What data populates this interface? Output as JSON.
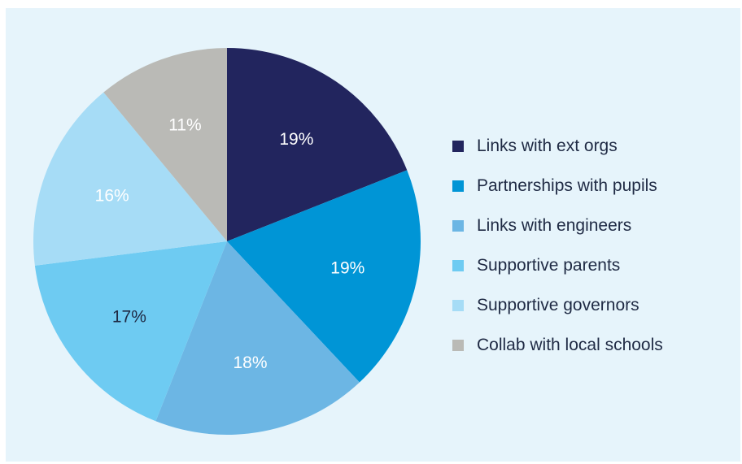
{
  "chart_data": {
    "type": "pie",
    "title": "",
    "legend_position": "right",
    "slices": [
      {
        "label": "Links with ext orgs",
        "value": 19,
        "display": "19%",
        "color": "#22255e",
        "text_color": "#ffffff"
      },
      {
        "label": "Partnerships with pupils",
        "value": 19,
        "display": "19%",
        "color": "#0095d6",
        "text_color": "#ffffff"
      },
      {
        "label": "Links with engineers",
        "value": 18,
        "display": "18%",
        "color": "#6cb6e4",
        "text_color": "#ffffff"
      },
      {
        "label": "Supportive parents",
        "value": 17,
        "display": "17%",
        "color": "#6ecbf2",
        "text_color": "#1f2a44"
      },
      {
        "label": "Supportive governors",
        "value": 16,
        "display": "16%",
        "color": "#a6dcf6",
        "text_color": "#ffffff"
      },
      {
        "label": "Collab with local schools",
        "value": 11,
        "display": "11%",
        "color": "#babab6",
        "text_color": "#ffffff"
      }
    ]
  }
}
